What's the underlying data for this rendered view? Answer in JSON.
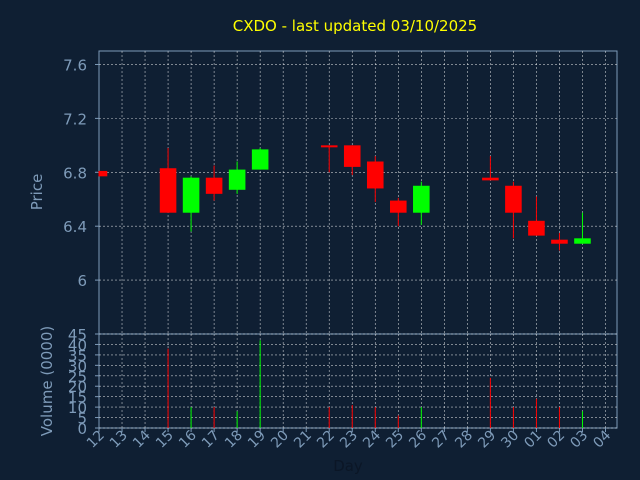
{
  "chart_data": {
    "type": "candlestick",
    "title": "CXDO - last updated 03/10/2025",
    "xlabel": "Day",
    "price_panel": {
      "ylabel": "Price",
      "ylim": [
        5.6,
        7.7
      ],
      "yticks": [
        6,
        6.4,
        6.8,
        7.2,
        7.6
      ],
      "ytick_labels": [
        "6",
        "6.4",
        "6.8",
        "7.2",
        "7.6"
      ]
    },
    "volume_panel": {
      "ylabel": "Volume (0000)",
      "ylim": [
        0,
        45
      ],
      "yticks": [
        0,
        5,
        10,
        15,
        20,
        25,
        30,
        35,
        40,
        45
      ],
      "ytick_labels": [
        "0",
        "5",
        "10",
        "15",
        "20",
        "25",
        "30",
        "35",
        "40",
        "45"
      ]
    },
    "grid": true,
    "up_color": "#00ff00",
    "down_color": "#ff0000",
    "x_tick_labels": [
      "12",
      "13",
      "14",
      "15",
      "16",
      "17",
      "18",
      "19",
      "20",
      "21",
      "22",
      "23",
      "24",
      "25",
      "26",
      "27",
      "28",
      "29",
      "30",
      "01",
      "02",
      "03",
      "04"
    ],
    "candles": [
      {
        "x": "12",
        "open": 6.81,
        "high": 6.81,
        "low": 6.77,
        "close": 6.77,
        "volume": 0
      },
      {
        "x": "15",
        "open": 6.83,
        "high": 6.98,
        "low": 6.5,
        "close": 6.5,
        "volume": 38
      },
      {
        "x": "16",
        "open": 6.5,
        "high": 6.77,
        "low": 6.36,
        "close": 6.76,
        "volume": 10
      },
      {
        "x": "17",
        "open": 6.76,
        "high": 6.85,
        "low": 6.59,
        "close": 6.64,
        "volume": 10
      },
      {
        "x": "18",
        "open": 6.67,
        "high": 6.88,
        "low": 6.64,
        "close": 6.82,
        "volume": 8
      },
      {
        "x": "19",
        "open": 6.82,
        "high": 6.98,
        "low": 6.82,
        "close": 6.97,
        "volume": 42
      },
      {
        "x": "22",
        "open": 7.0,
        "high": 7.0,
        "low": 6.8,
        "close": 6.99,
        "volume": 10
      },
      {
        "x": "23",
        "open": 7.0,
        "high": 7.0,
        "low": 6.78,
        "close": 6.84,
        "volume": 11
      },
      {
        "x": "24",
        "open": 6.88,
        "high": 6.92,
        "low": 6.58,
        "close": 6.68,
        "volume": 10
      },
      {
        "x": "25",
        "open": 6.59,
        "high": 6.61,
        "low": 6.4,
        "close": 6.5,
        "volume": 6
      },
      {
        "x": "26",
        "open": 6.5,
        "high": 6.73,
        "low": 6.41,
        "close": 6.7,
        "volume": 10
      },
      {
        "x": "29",
        "open": 6.76,
        "high": 6.92,
        "low": 6.74,
        "close": 6.74,
        "volume": 24
      },
      {
        "x": "30",
        "open": 6.7,
        "high": 6.73,
        "low": 6.31,
        "close": 6.5,
        "volume": 10
      },
      {
        "x": "01",
        "open": 6.44,
        "high": 6.62,
        "low": 6.33,
        "close": 6.33,
        "volume": 14
      },
      {
        "x": "02",
        "open": 6.3,
        "high": 6.35,
        "low": 6.22,
        "close": 6.27,
        "volume": 10
      },
      {
        "x": "03",
        "open": 6.27,
        "high": 6.5,
        "low": 6.27,
        "close": 6.31,
        "volume": 8
      }
    ]
  }
}
